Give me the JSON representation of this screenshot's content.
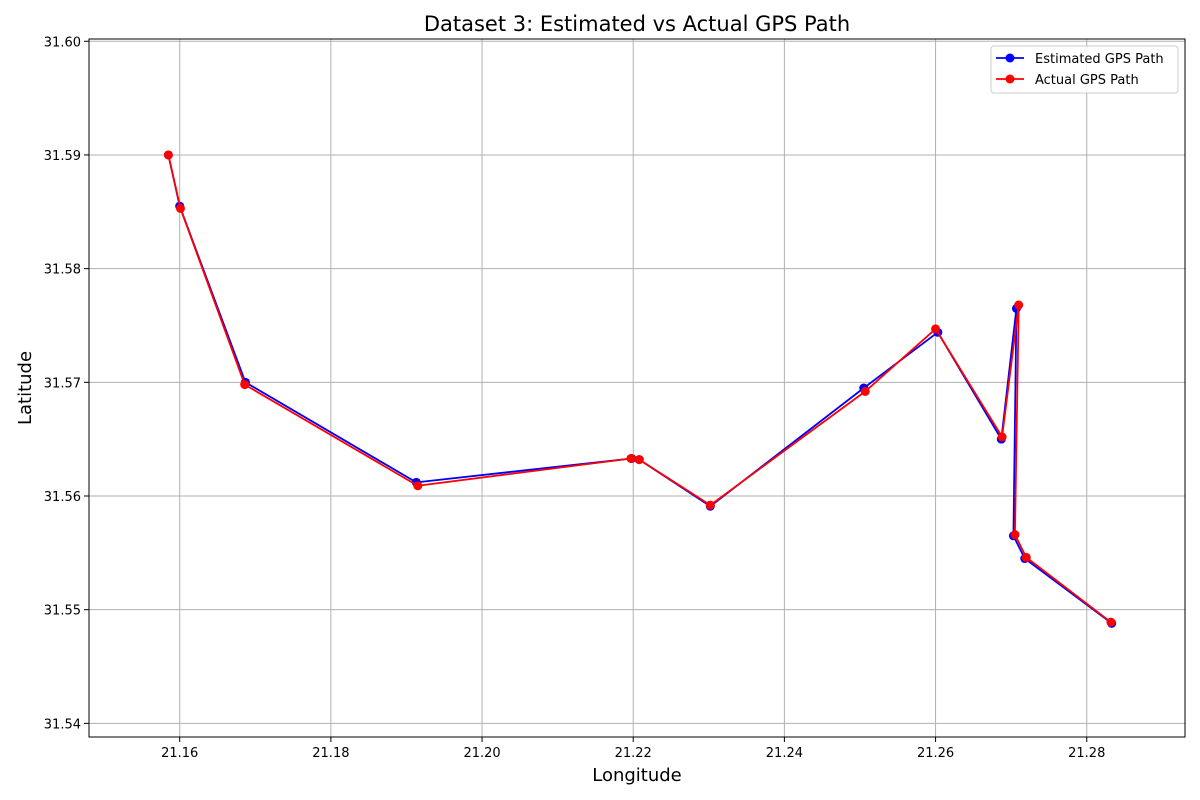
{
  "chart_data": {
    "type": "line",
    "title": "Dataset 3: Estimated vs Actual GPS Path",
    "xlabel": "Longitude",
    "ylabel": "Latitude",
    "xlim": [
      21.148,
      21.293
    ],
    "ylim": [
      31.5388,
      31.6002
    ],
    "xticks": [
      "21.16",
      "21.18",
      "21.20",
      "21.22",
      "21.24",
      "21.26",
      "21.28"
    ],
    "yticks": [
      "31.54",
      "31.55",
      "31.56",
      "31.57",
      "31.58",
      "31.59",
      "31.60"
    ],
    "grid": true,
    "legend_position": "top-right",
    "series": [
      {
        "name": "Estimated GPS Path",
        "color": "#0000ff",
        "marker": "circle",
        "x": [
          21.1585,
          21.16,
          21.1687,
          21.1913,
          21.2198,
          21.2208,
          21.2302,
          21.2505,
          21.2603,
          21.2687,
          21.2707,
          21.2703,
          21.2718,
          21.2833
        ],
        "y": [
          31.59,
          31.5855,
          31.57,
          31.5612,
          31.5633,
          31.5632,
          31.5591,
          31.5695,
          31.5744,
          31.565,
          31.5765,
          31.5565,
          31.5545,
          31.5488
        ]
      },
      {
        "name": "Actual GPS Path",
        "color": "#ff0000",
        "marker": "circle",
        "x": [
          21.1585,
          21.1601,
          21.1686,
          21.1915,
          21.2197,
          21.2208,
          21.2302,
          21.2507,
          21.26,
          21.2688,
          21.271,
          21.2705,
          21.272,
          21.2832
        ],
        "y": [
          31.59,
          31.5853,
          31.5698,
          31.5609,
          31.5633,
          31.5632,
          31.5592,
          31.5692,
          31.5747,
          31.5652,
          31.5768,
          31.5566,
          31.5546,
          31.5489
        ]
      }
    ]
  }
}
